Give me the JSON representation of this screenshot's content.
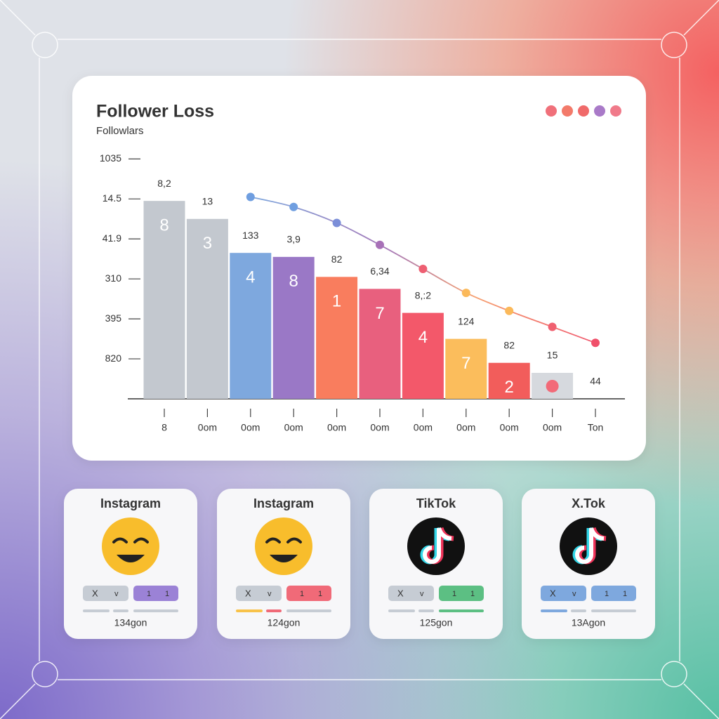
{
  "chart_data": {
    "type": "bar",
    "title": "Follower Loss",
    "subtitle": "Followlars",
    "categories": [
      "8",
      "0om",
      "0om",
      "0om",
      "0om",
      "0om",
      "0om",
      "0om",
      "0om",
      "0om",
      "Ton"
    ],
    "values": [
      4.95,
      4.5,
      3.65,
      3.55,
      3.05,
      2.75,
      2.15,
      1.5,
      0.9,
      0.65,
      null
    ],
    "bar_labels": [
      "8",
      "3",
      "4",
      "8",
      "1",
      "7",
      "4",
      "7",
      "2",
      null,
      null
    ],
    "annotations": [
      "8,2",
      "13",
      "133",
      "3,9",
      "82",
      "6,34",
      "8,:2",
      "124",
      "82",
      "15",
      "44"
    ],
    "colors": [
      "#c3c8cf",
      "#c3c8cf",
      "#7ea8de",
      "#9a78c6",
      "#f97d5e",
      "#e8607e",
      "#f3586a",
      "#fbbd5c",
      "#f25d5b",
      "#d6d9de",
      "#d6d9de"
    ],
    "line": {
      "values": [
        null,
        null,
        5.05,
        4.8,
        4.4,
        3.85,
        3.25,
        2.65,
        2.2,
        1.8,
        1.4
      ],
      "colors": [
        null,
        null,
        "#6f9ee0",
        "#6f9ee0",
        "#7b8ed8",
        "#a871b8",
        "#ee5f72",
        "#fbb95a",
        "#fbb95a",
        "#f06070",
        "#f0506a"
      ]
    },
    "ylim": [
      0,
      6.2
    ],
    "yticks": [
      {
        "value": 6,
        "label": "1035"
      },
      {
        "value": 5,
        "label": "14.5"
      },
      {
        "value": 4,
        "label": "41.9"
      },
      {
        "value": 3,
        "label": "310"
      },
      {
        "value": 2,
        "label": "395"
      },
      {
        "value": 1,
        "label": "820"
      }
    ]
  },
  "cards": [
    {
      "title": "Instagram",
      "pill_a": [
        "X",
        "v"
      ],
      "pill_b": [
        "1",
        "1"
      ],
      "footer": "134gon",
      "color": "#9b82d6"
    },
    {
      "title": "Instagram",
      "pill_a": [
        "X",
        "v"
      ],
      "pill_b": [
        "1",
        "1"
      ],
      "footer": "124gon",
      "color": "#f06a78"
    },
    {
      "title": "TikTok",
      "pill_a": [
        "X",
        "v"
      ],
      "pill_b": [
        "1",
        "1"
      ],
      "footer": "125gon",
      "color": "#5cbf83"
    },
    {
      "title": "X.Tok",
      "pill_a": [
        "X",
        "v"
      ],
      "pill_b": [
        "1",
        "1"
      ],
      "footer": "13Agon",
      "color": "#7ea8de"
    }
  ]
}
